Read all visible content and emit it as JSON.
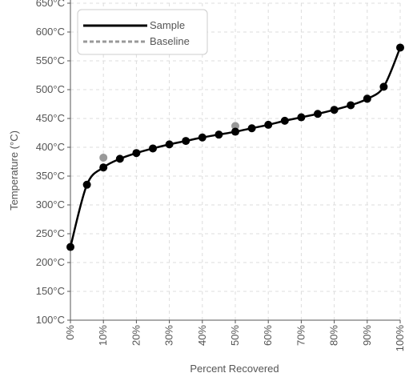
{
  "chart_data": {
    "type": "line",
    "title": "",
    "xlabel": "Percent Recovered",
    "ylabel": "Temperature (°C)",
    "xlim": [
      0,
      100
    ],
    "ylim": [
      100,
      650
    ],
    "x_ticks": [
      "0%",
      "10%",
      "20%",
      "30%",
      "40%",
      "50%",
      "60%",
      "70%",
      "80%",
      "90%",
      "100%"
    ],
    "y_ticks": [
      "100°C",
      "150°C",
      "200°C",
      "250°C",
      "300°C",
      "350°C",
      "400°C",
      "450°C",
      "500°C",
      "550°C",
      "600°C",
      "650°C"
    ],
    "grid": true,
    "legend_position": "top-left",
    "series": [
      {
        "name": "Sample",
        "color": "#000000",
        "line_style": "solid",
        "x": [
          0,
          5,
          10,
          15,
          20,
          25,
          30,
          35,
          40,
          45,
          50,
          55,
          60,
          65,
          70,
          75,
          80,
          85,
          90,
          95,
          100
        ],
        "y": [
          227,
          335,
          365,
          380,
          390,
          398,
          405,
          411,
          417,
          422,
          427,
          433,
          439,
          446,
          452,
          458,
          465,
          473,
          484,
          505,
          573
        ]
      },
      {
        "name": "Baseline",
        "color": "#999999",
        "line_style": "dashed",
        "x": [
          10,
          50,
          90
        ],
        "y": [
          382,
          437,
          485
        ]
      }
    ]
  }
}
